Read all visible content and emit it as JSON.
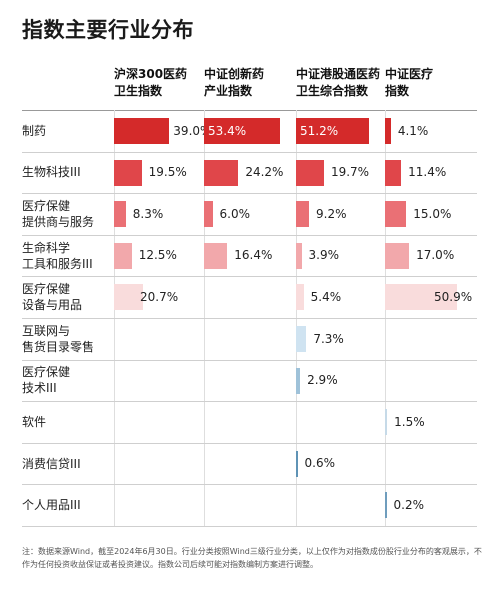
{
  "title": "指数主要行业分布",
  "columns": [
    {
      "line1": "沪深300医药",
      "line2": "卫生指数"
    },
    {
      "line1": "中证创新药",
      "line2": "产业指数"
    },
    {
      "line1": "中证港股通医药",
      "line2": "卫生综合指数"
    },
    {
      "line1": "中证医疗",
      "line2": "指数"
    }
  ],
  "rows": [
    {
      "line1": "制药",
      "line2": ""
    },
    {
      "line1": "生物科技III",
      "line2": ""
    },
    {
      "line1": "医疗保健",
      "line2": "提供商与服务"
    },
    {
      "line1": "生命科学",
      "line2": "工具和服务III"
    },
    {
      "line1": "医疗保健",
      "line2": "设备与用品"
    },
    {
      "line1": "互联网与",
      "line2": "售货目录零售"
    },
    {
      "line1": "医疗保健",
      "line2": "技术III"
    },
    {
      "line1": "软件",
      "line2": ""
    },
    {
      "line1": "消费信贷III",
      "line2": ""
    },
    {
      "line1": "个人用品III",
      "line2": ""
    }
  ],
  "colors": {
    "row_colors": [
      "#d42a2a",
      "#e0464a",
      "#ea7075",
      "#f2a8ab",
      "#f9dcdc",
      "#cfe3f1",
      "#9fc2d9",
      "#c6dae8",
      "#5f93b5",
      "#6f9dbd"
    ]
  },
  "chart_data": {
    "type": "table",
    "categories": [
      "制药",
      "生物科技III",
      "医疗保健提供商与服务",
      "生命科学工具和服务III",
      "医疗保健设备与用品",
      "互联网与售货目录零售",
      "医疗保健技术III",
      "软件",
      "消费信贷III",
      "个人用品III"
    ],
    "series": [
      {
        "name": "沪深300医药卫生指数",
        "values": [
          39.0,
          19.5,
          8.3,
          12.5,
          20.7,
          null,
          null,
          null,
          null,
          null
        ],
        "labels": [
          "39.0%",
          "19.5%",
          "8.3%",
          "12.5%",
          "20.7%",
          "",
          "",
          "",
          "",
          ""
        ]
      },
      {
        "name": "中证创新药产业指数",
        "values": [
          53.4,
          24.2,
          6.0,
          16.4,
          null,
          null,
          null,
          null,
          null,
          null
        ],
        "labels": [
          "53.4%",
          "24.2%",
          "6.0%",
          "16.4%",
          "",
          "",
          "",
          "",
          "",
          ""
        ]
      },
      {
        "name": "中证港股通医药卫生综合指数",
        "values": [
          51.2,
          19.7,
          9.2,
          3.9,
          5.4,
          7.3,
          2.9,
          null,
          0.6,
          null
        ],
        "labels": [
          "51.2%",
          "19.7%",
          "9.2%",
          "3.9%",
          "5.4%",
          "7.3%",
          "2.9%",
          "",
          "0.6%",
          ""
        ]
      },
      {
        "name": "中证医疗指数",
        "values": [
          4.1,
          11.4,
          15.0,
          17.0,
          50.9,
          null,
          null,
          1.5,
          null,
          0.2
        ],
        "labels": [
          "4.1%",
          "11.4%",
          "15.0%",
          "17.0%",
          "50.9%",
          "",
          "",
          "1.5%",
          "",
          "0.2%"
        ]
      }
    ],
    "max_value": 55
  },
  "note": "注：数据来源Wind，截至2024年6月30日。行业分类按照Wind三级行业分类，以上仅作为对指数成份股行业分布的客观展示，不作为任何投资收益保证或者投资建议。指数公司后续可能对指数编制方案进行调整。"
}
